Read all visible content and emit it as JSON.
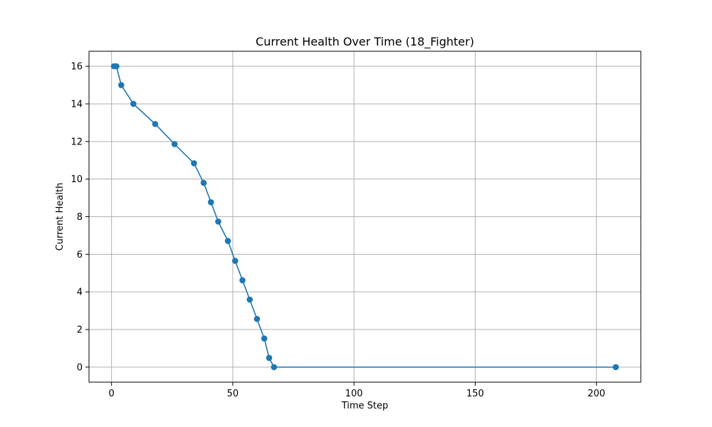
{
  "chart_data": {
    "type": "line",
    "title": "Current Health Over Time (18_Fighter)",
    "xlabel": "Time Step",
    "ylabel": "Current Health",
    "xlim": [
      -9.3,
      218.3
    ],
    "ylim": [
      -0.8,
      16.8
    ],
    "xticks": [
      0,
      50,
      100,
      150,
      200
    ],
    "yticks": [
      0,
      2,
      4,
      6,
      8,
      10,
      12,
      14,
      16
    ],
    "grid": true,
    "marker": "circle",
    "color": "#1f77b4",
    "series": [
      {
        "x": [
          1,
          2,
          4,
          9,
          18,
          26,
          34,
          38,
          41,
          44,
          48,
          51,
          54,
          57,
          60,
          63,
          65,
          67,
          208
        ],
        "y": [
          16,
          16,
          15,
          14,
          12.93,
          11.86,
          10.84,
          9.8,
          8.77,
          7.74,
          6.71,
          5.65,
          4.62,
          3.59,
          2.56,
          1.52,
          0.49,
          0,
          0
        ]
      }
    ]
  }
}
